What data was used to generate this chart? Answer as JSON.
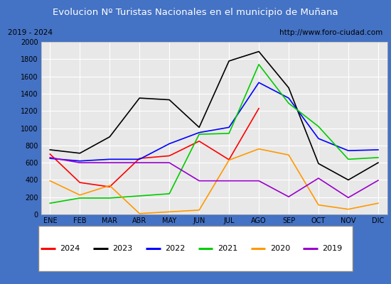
{
  "title": "Evolucion Nº Turistas Nacionales en el municipio de Muñana",
  "subtitle_left": "2019 - 2024",
  "subtitle_right": "http://www.foro-ciudad.com",
  "months": [
    "ENE",
    "FEB",
    "MAR",
    "ABR",
    "MAY",
    "JUN",
    "JUL",
    "AGO",
    "SEP",
    "OCT",
    "NOV",
    "DIC"
  ],
  "series": {
    "2024": [
      700,
      370,
      320,
      650,
      680,
      850,
      635,
      1230,
      null,
      null,
      null,
      null
    ],
    "2023": [
      750,
      710,
      900,
      1350,
      1330,
      1010,
      1780,
      1890,
      1470,
      590,
      400,
      600
    ],
    "2022": [
      650,
      620,
      640,
      640,
      820,
      950,
      1010,
      1530,
      1350,
      880,
      740,
      750
    ],
    "2021": [
      130,
      190,
      190,
      215,
      240,
      930,
      940,
      1740,
      1290,
      1020,
      640,
      660
    ],
    "2020": [
      390,
      225,
      335,
      10,
      30,
      50,
      630,
      760,
      690,
      110,
      60,
      130
    ],
    "2019": [
      660,
      600,
      600,
      600,
      600,
      390,
      390,
      390,
      205,
      420,
      195,
      395
    ]
  },
  "colors": {
    "2024": "#ff0000",
    "2023": "#000000",
    "2022": "#0000ff",
    "2021": "#00cc00",
    "2020": "#ff9900",
    "2019": "#9900cc"
  },
  "ylim": [
    0,
    2000
  ],
  "yticks": [
    0,
    200,
    400,
    600,
    800,
    1000,
    1200,
    1400,
    1600,
    1800,
    2000
  ],
  "title_bg_color": "#4472c4",
  "title_font_color": "#ffffff",
  "plot_bg_color": "#e8e8e8",
  "grid_color": "#ffffff",
  "border_color": "#4472c4"
}
